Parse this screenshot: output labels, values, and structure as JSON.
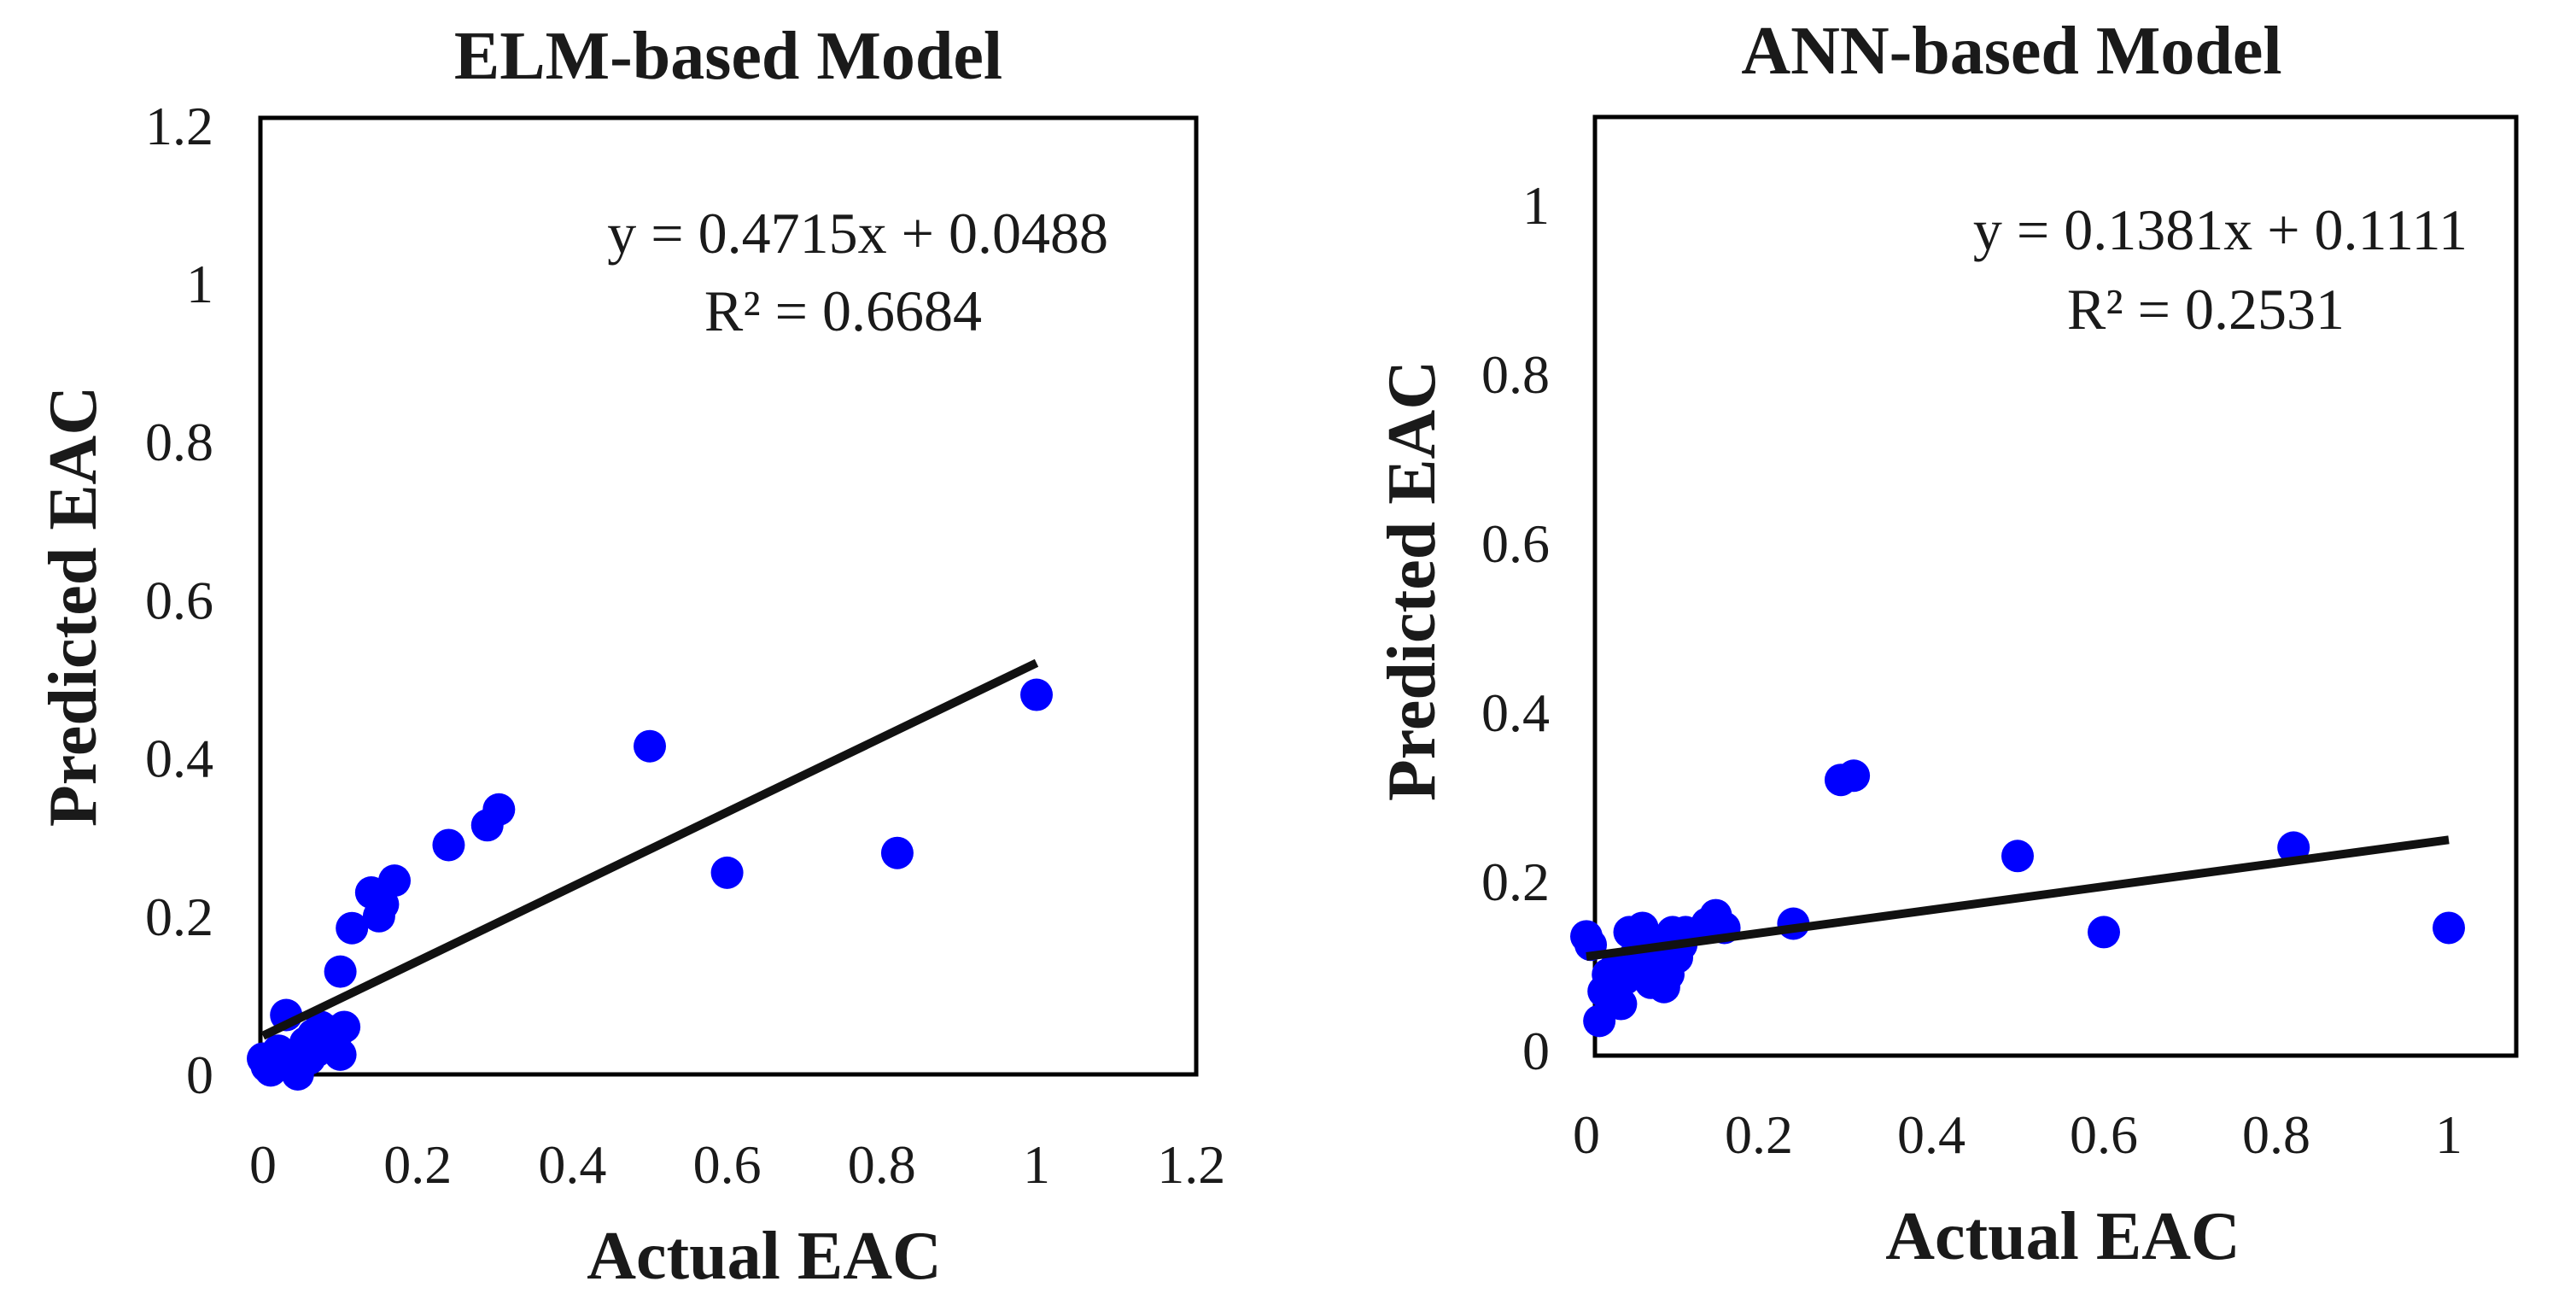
{
  "colors": {
    "point": "#0000ff",
    "trendline": "#111111",
    "frame": "#000000",
    "text": "#1a1a1a"
  },
  "chart_data": [
    {
      "type": "scatter",
      "title": "ELM-based Model",
      "xlabel": "Actual EAC",
      "ylabel": "Predicted EAC",
      "xlim": [
        0,
        1.2
      ],
      "ylim": [
        0,
        1.2
      ],
      "xticks": [
        "0",
        "0.2",
        "0.4",
        "0.6",
        "0.8",
        "1",
        "1.2"
      ],
      "yticks": [
        "0",
        "0.2",
        "0.4",
        "0.6",
        "0.8",
        "1",
        "1.2"
      ],
      "equation": "y = 0.4715x + 0.0488",
      "r_squared": "R² = 0.6684",
      "trendline": {
        "slope": 0.4715,
        "intercept": 0.0488,
        "x_range": [
          0,
          1
        ]
      },
      "points": [
        [
          0,
          0.02
        ],
        [
          0.005,
          0.01
        ],
        [
          0.01,
          0.005
        ],
        [
          0.015,
          0.02
        ],
        [
          0.02,
          0.03
        ],
        [
          0.025,
          0.015
        ],
        [
          0.03,
          0.075
        ],
        [
          0.035,
          0.02
        ],
        [
          0.04,
          0.01
        ],
        [
          0.045,
          0.0
        ],
        [
          0.05,
          0.03
        ],
        [
          0.055,
          0.04
        ],
        [
          0.06,
          0.02
        ],
        [
          0.065,
          0.05
        ],
        [
          0.07,
          0.03
        ],
        [
          0.075,
          0.06
        ],
        [
          0.08,
          0.04
        ],
        [
          0.085,
          0.055
        ],
        [
          0.09,
          0.035
        ],
        [
          0.095,
          0.05
        ],
        [
          0.1,
          0.025
        ],
        [
          0.105,
          0.06
        ],
        [
          0.1,
          0.13
        ],
        [
          0.115,
          0.185
        ],
        [
          0.14,
          0.23
        ],
        [
          0.15,
          0.2
        ],
        [
          0.155,
          0.215
        ],
        [
          0.17,
          0.245
        ],
        [
          0.24,
          0.29
        ],
        [
          0.29,
          0.315
        ],
        [
          0.305,
          0.335
        ],
        [
          0.5,
          0.415
        ],
        [
          0.6,
          0.255
        ],
        [
          0.82,
          0.28
        ],
        [
          1.0,
          0.48
        ]
      ]
    },
    {
      "type": "scatter",
      "title": "ANN-based Model",
      "xlabel": "Actual EAC",
      "ylabel": "Predicted EAC",
      "xlim": [
        0,
        1.05
      ],
      "ylim": [
        0,
        1.1
      ],
      "xticks": [
        "0",
        "0.2",
        "0.4",
        "0.6",
        "0.8",
        "1"
      ],
      "yticks": [
        "0",
        "0.2",
        "0.4",
        "0.6",
        "0.8",
        "1"
      ],
      "equation": "y = 0.1381x + 0.1111",
      "r_squared": "R² = 0.2531",
      "trendline": {
        "slope": 0.1381,
        "intercept": 0.1111,
        "x_range": [
          0,
          1
        ]
      },
      "points": [
        [
          0,
          0.135
        ],
        [
          0.005,
          0.125
        ],
        [
          0.015,
          0.035
        ],
        [
          0.02,
          0.07
        ],
        [
          0.025,
          0.09
        ],
        [
          0.03,
          0.075
        ],
        [
          0.035,
          0.1
        ],
        [
          0.04,
          0.055
        ],
        [
          0.045,
          0.085
        ],
        [
          0.05,
          0.14
        ],
        [
          0.055,
          0.11
        ],
        [
          0.06,
          0.095
        ],
        [
          0.065,
          0.145
        ],
        [
          0.07,
          0.12
        ],
        [
          0.075,
          0.08
        ],
        [
          0.08,
          0.13
        ],
        [
          0.085,
          0.1
        ],
        [
          0.09,
          0.075
        ],
        [
          0.095,
          0.09
        ],
        [
          0.1,
          0.14
        ],
        [
          0.105,
          0.11
        ],
        [
          0.11,
          0.125
        ],
        [
          0.115,
          0.14
        ],
        [
          0.14,
          0.15
        ],
        [
          0.15,
          0.16
        ],
        [
          0.16,
          0.145
        ],
        [
          0.24,
          0.15
        ],
        [
          0.295,
          0.32
        ],
        [
          0.31,
          0.325
        ],
        [
          0.5,
          0.23
        ],
        [
          0.6,
          0.14
        ],
        [
          0.82,
          0.24
        ],
        [
          1.0,
          0.145
        ]
      ]
    }
  ]
}
